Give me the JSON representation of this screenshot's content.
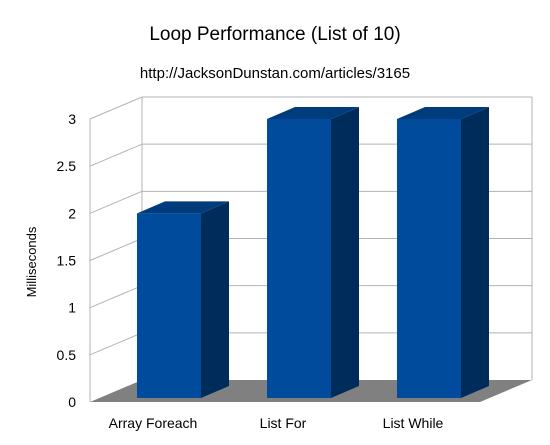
{
  "chart_data": {
    "type": "bar",
    "title": "Loop Performance (List of 10)",
    "subtitle": "http://JacksonDunstan.com/articles/3165",
    "xlabel": "",
    "ylabel": "Milliseconds",
    "categories": [
      "Array Foreach",
      "List For",
      "List While"
    ],
    "series": [
      {
        "values": [
          2,
          3,
          3
        ]
      }
    ],
    "ylim": [
      0,
      3
    ],
    "yticks": [
      "0",
      "0.5",
      "1",
      "1.5",
      "2",
      "2.5",
      "3"
    ],
    "grid": true,
    "legend": "none",
    "style": "3d"
  },
  "colors": {
    "bar_front": "#004b9b",
    "bar_side": "#002c5c",
    "bar_top": "#003b7c",
    "floor": "#808080",
    "grid": "#b3b3b3"
  }
}
